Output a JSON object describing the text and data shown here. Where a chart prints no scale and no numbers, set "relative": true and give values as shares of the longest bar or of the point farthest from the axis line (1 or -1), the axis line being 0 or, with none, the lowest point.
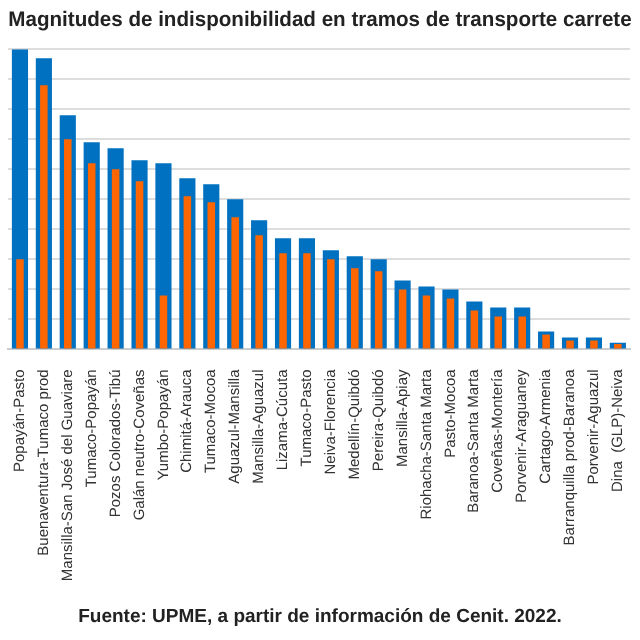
{
  "chart_data": {
    "type": "bar",
    "title": "Magnitudes de indisponibilidad en tramos de transporte carrete",
    "relative": true,
    "grid": "y",
    "legend": false,
    "categories": [
      "Popayán-Pasto",
      "Buenaventura-Tumaco prod",
      "Mansilla-San José del Guaviare",
      "Tumaco-Popayán",
      "Pozos Colorados-Tibú",
      "Galán neutro-Coveñas",
      "Yumbo-Popayán",
      "Chimitá-Arauca",
      "Tumaco-Mocoa",
      "Aguazul-Mansilla",
      "Mansilla-Aguazul",
      "Lizama-Cúcuta",
      "Tumaco-Pasto",
      "Neiva-Florencia",
      "Medellín-Quibdó",
      "Pereira-Quibdó",
      "Mansilla-Apiay",
      "Riohacha-Santa Marta",
      "Pasto-Mocoa",
      "Baranoa-Santa Marta",
      "Coveñas-Montería",
      "Porvenir-Araguaney",
      "Cartago-Armenia",
      "Barranquilla prod-Baranoa",
      "Porvenir-Aguazul",
      "Dina  (GLP)-Neiva"
    ],
    "series": [
      {
        "color": "#0070c0",
        "values": [
          1,
          0.97,
          0.78,
          0.69,
          0.67,
          0.63,
          0.62,
          0.57,
          0.55,
          0.5,
          0.43,
          0.37,
          0.37,
          0.33,
          0.31,
          0.3,
          0.23,
          0.21,
          0.2,
          0.16,
          0.14,
          0.14,
          0.06,
          0.04,
          0.04,
          0.022
        ]
      },
      {
        "color": "#ff6600",
        "values": [
          0.3,
          0.88,
          0.7,
          0.62,
          0.6,
          0.56,
          0.18,
          0.51,
          0.49,
          0.44,
          0.38,
          0.32,
          0.32,
          0.3,
          0.27,
          0.26,
          0.2,
          0.18,
          0.17,
          0.13,
          0.11,
          0.11,
          0.05,
          0.03,
          0.03,
          0.018
        ]
      }
    ],
    "annotations": [
      "Fuente: UPME, a partir de información de Cenit. 2022."
    ]
  }
}
